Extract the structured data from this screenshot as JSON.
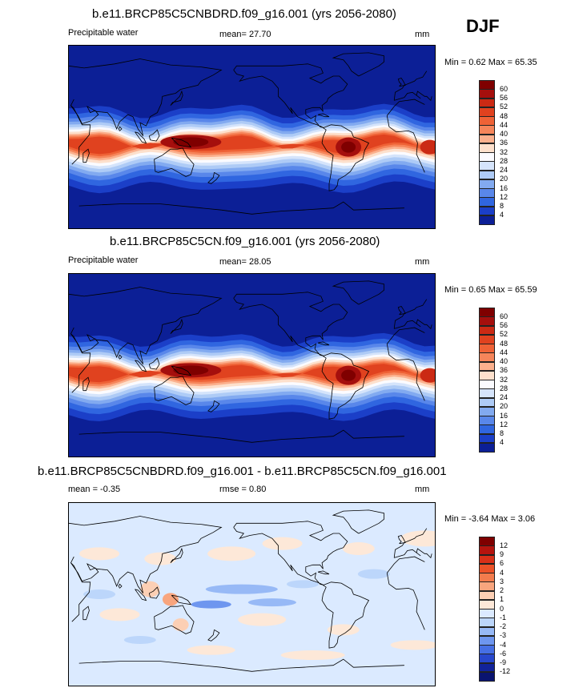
{
  "season": "DJF",
  "panels": [
    {
      "title": "b.e11.BRCP85C5CNBDRD.f09_g16.001 (yrs 2056-2080)",
      "left_label": "Precipitable water",
      "center_label": "mean=  27.70",
      "units": "mm",
      "minmax": "Min =   0.62 Max =  65.35",
      "palette": "warm",
      "levels": [
        "60",
        "56",
        "52",
        "48",
        "44",
        "40",
        "36",
        "32",
        "28",
        "24",
        "20",
        "16",
        "12",
        "8",
        "4"
      ]
    },
    {
      "title": "b.e11.BRCP85C5CN.f09_g16.001 (yrs 2056-2080)",
      "left_label": "Precipitable water",
      "center_label": "mean=  28.05",
      "units": "mm",
      "minmax": "Min =   0.65 Max =  65.59",
      "palette": "warm",
      "levels": [
        "60",
        "56",
        "52",
        "48",
        "44",
        "40",
        "36",
        "32",
        "28",
        "24",
        "20",
        "16",
        "12",
        "8",
        "4"
      ]
    },
    {
      "title": "b.e11.BRCP85C5CNBDRD.f09_g16.001 - b.e11.BRCP85C5CN.f09_g16.001",
      "left_label": "mean =  -0.35",
      "center_label": "rmse =   0.80",
      "units": "mm",
      "minmax": "Min =  -3.64 Max =   3.06",
      "palette": "diff",
      "levels": [
        "12",
        "9",
        "6",
        "4",
        "3",
        "2",
        "1",
        "0",
        "-1",
        "-2",
        "-3",
        "-4",
        "-6",
        "-9",
        "-12"
      ]
    }
  ],
  "colors": {
    "warm": [
      "#7f0000",
      "#a50f0d",
      "#cb2a14",
      "#e0421f",
      "#ef6236",
      "#f6855a",
      "#fbb08d",
      "#fde0cc",
      "#fbfbff",
      "#d5e4fb",
      "#aecbf6",
      "#82aaf0",
      "#5987ea",
      "#3066e0",
      "#1b3fc8",
      "#0c1f96"
    ],
    "diff": [
      "#7f0000",
      "#b5140e",
      "#d83018",
      "#ec5228",
      "#f37c4d",
      "#f8a57e",
      "#fccfb4",
      "#fde8d8",
      "#dbeaff",
      "#bcd6fb",
      "#97b9f6",
      "#6e96ef",
      "#466fe4",
      "#2847cc",
      "#12239a",
      "#0a1470"
    ]
  }
}
